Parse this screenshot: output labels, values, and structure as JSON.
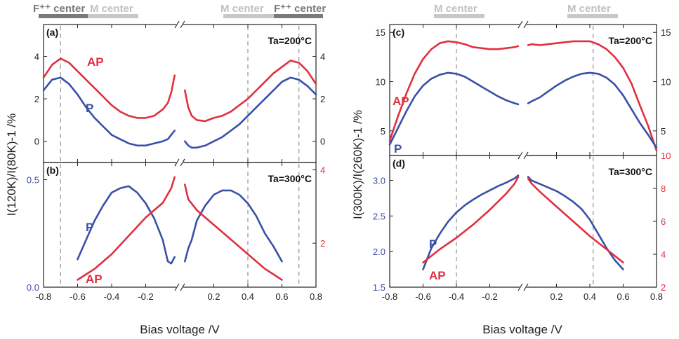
{
  "colors": {
    "p": "#3a4fa8",
    "ap": "#e03040",
    "dark_bar": "#7a7a7a",
    "light_bar": "#c8c8c8",
    "dashed": "#888888"
  },
  "top_labels": {
    "left_f": "F⁺⁺ center",
    "left_m": "M center",
    "right_m": "M center",
    "right_f": "F⁺⁺ center",
    "c_left_m": "M center",
    "c_right_m": "M center"
  },
  "xlabel": "Bias voltage /V",
  "ylabel_left": "I(120K)/I(80K)-1 /%",
  "ylabel_right": "I(300K)/I(260K)-1 /%",
  "x_ticks": [
    "-0.8",
    "-0.6",
    "-0.4",
    "-0.2",
    "0.2",
    "0.4",
    "0.6",
    "0.8"
  ],
  "chart_data": [
    {
      "panel": "(a)",
      "type": "line",
      "annotation": "Ta=200°C",
      "xlim": [
        -0.8,
        0.8
      ],
      "ylim": [
        -1,
        5.5
      ],
      "yticks_left": [
        "0",
        "2",
        "4"
      ],
      "yticks_right": [
        "0",
        "2",
        "4"
      ],
      "dashed_x": [
        -0.7,
        0.4,
        0.7
      ],
      "series": [
        {
          "name": "AP",
          "x": [
            -0.8,
            -0.75,
            -0.7,
            -0.65,
            -0.6,
            -0.55,
            -0.5,
            -0.45,
            -0.4,
            -0.35,
            -0.3,
            -0.25,
            -0.2,
            -0.15,
            -0.1,
            -0.07,
            -0.05,
            -0.03,
            0.03,
            0.05,
            0.07,
            0.1,
            0.15,
            0.2,
            0.25,
            0.3,
            0.35,
            0.4,
            0.45,
            0.5,
            0.55,
            0.6,
            0.65,
            0.7,
            0.75,
            0.8
          ],
          "y": [
            3.0,
            3.6,
            3.9,
            3.7,
            3.3,
            2.9,
            2.5,
            2.1,
            1.7,
            1.4,
            1.2,
            1.1,
            1.1,
            1.2,
            1.5,
            1.8,
            2.3,
            3.1,
            2.4,
            1.6,
            1.2,
            1.0,
            0.95,
            1.1,
            1.2,
            1.4,
            1.7,
            2.0,
            2.4,
            2.8,
            3.2,
            3.5,
            3.8,
            3.7,
            3.3,
            2.7
          ]
        },
        {
          "name": "P",
          "x": [
            -0.8,
            -0.75,
            -0.7,
            -0.65,
            -0.6,
            -0.55,
            -0.5,
            -0.45,
            -0.4,
            -0.35,
            -0.3,
            -0.25,
            -0.2,
            -0.15,
            -0.1,
            -0.07,
            -0.05,
            -0.03,
            0.03,
            0.05,
            0.07,
            0.1,
            0.15,
            0.2,
            0.25,
            0.3,
            0.35,
            0.4,
            0.45,
            0.5,
            0.55,
            0.6,
            0.65,
            0.7,
            0.75,
            0.8
          ],
          "y": [
            2.4,
            2.9,
            3.0,
            2.7,
            2.2,
            1.6,
            1.1,
            0.7,
            0.3,
            0.1,
            -0.1,
            -0.2,
            -0.2,
            -0.1,
            0.0,
            0.1,
            0.3,
            0.5,
            0.0,
            -0.2,
            -0.3,
            -0.3,
            -0.2,
            0.0,
            0.2,
            0.5,
            0.8,
            1.2,
            1.6,
            2.0,
            2.4,
            2.8,
            3.0,
            2.9,
            2.6,
            2.2
          ]
        }
      ]
    },
    {
      "panel": "(b)",
      "type": "line",
      "annotation": "Ta=300°C",
      "xlim": [
        -0.8,
        0.8
      ],
      "ylim_left": [
        0,
        0.58
      ],
      "ylim_right": [
        0.8,
        4.2
      ],
      "yticks_left": [
        "0.0",
        "0.5"
      ],
      "yticks_right": [
        "2",
        "4"
      ],
      "dashed_x": [
        -0.7,
        0.4,
        0.7
      ],
      "series": [
        {
          "name": "P",
          "axis": "left",
          "x": [
            -0.6,
            -0.55,
            -0.5,
            -0.45,
            -0.4,
            -0.35,
            -0.3,
            -0.25,
            -0.2,
            -0.15,
            -0.1,
            -0.07,
            -0.05,
            -0.03,
            0.03,
            0.05,
            0.07,
            0.1,
            0.15,
            0.2,
            0.25,
            0.3,
            0.35,
            0.4,
            0.45,
            0.5,
            0.55,
            0.6
          ],
          "y": [
            0.13,
            0.22,
            0.31,
            0.38,
            0.44,
            0.46,
            0.47,
            0.44,
            0.39,
            0.32,
            0.22,
            0.12,
            0.11,
            0.14,
            0.12,
            0.18,
            0.22,
            0.31,
            0.38,
            0.43,
            0.45,
            0.45,
            0.43,
            0.39,
            0.33,
            0.25,
            0.19,
            0.12
          ]
        },
        {
          "name": "AP",
          "axis": "right",
          "x": [
            -0.6,
            -0.5,
            -0.4,
            -0.3,
            -0.2,
            -0.1,
            -0.05,
            -0.03,
            0.03,
            0.05,
            0.1,
            0.2,
            0.3,
            0.4,
            0.5,
            0.6
          ],
          "y": [
            1.0,
            1.3,
            1.7,
            2.2,
            2.7,
            3.1,
            3.5,
            3.8,
            3.6,
            3.2,
            2.9,
            2.5,
            2.1,
            1.7,
            1.3,
            1.0
          ]
        }
      ]
    },
    {
      "panel": "(c)",
      "type": "line",
      "annotation": "Ta=200°C",
      "xlim": [
        -0.8,
        0.8
      ],
      "ylim": [
        2.5,
        15.8
      ],
      "yticks_left": [
        "5",
        "10",
        "15"
      ],
      "yticks_right": [
        "5",
        "10",
        "15"
      ],
      "dashed_x": [
        -0.4,
        0.42
      ],
      "series": [
        {
          "name": "AP",
          "x": [
            -0.8,
            -0.75,
            -0.7,
            -0.65,
            -0.6,
            -0.55,
            -0.5,
            -0.45,
            -0.4,
            -0.35,
            -0.3,
            -0.25,
            -0.2,
            -0.15,
            -0.1,
            -0.05,
            -0.03,
            0.03,
            0.05,
            0.1,
            0.15,
            0.2,
            0.25,
            0.3,
            0.35,
            0.4,
            0.45,
            0.5,
            0.55,
            0.6,
            0.65,
            0.7,
            0.75,
            0.8
          ],
          "y": [
            4.0,
            6.5,
            8.8,
            10.8,
            12.3,
            13.3,
            13.9,
            14.1,
            14.0,
            13.8,
            13.5,
            13.4,
            13.3,
            13.3,
            13.4,
            13.5,
            13.6,
            13.7,
            13.8,
            13.7,
            13.8,
            13.9,
            14.0,
            14.1,
            14.1,
            14.1,
            13.8,
            13.3,
            12.5,
            11.4,
            9.8,
            7.6,
            5.5,
            3.0
          ]
        },
        {
          "name": "P",
          "x": [
            -0.8,
            -0.75,
            -0.7,
            -0.65,
            -0.6,
            -0.55,
            -0.5,
            -0.45,
            -0.4,
            -0.35,
            -0.3,
            -0.25,
            -0.2,
            -0.15,
            -0.1,
            -0.05,
            -0.03,
            0.03,
            0.05,
            0.1,
            0.15,
            0.2,
            0.25,
            0.3,
            0.35,
            0.4,
            0.45,
            0.5,
            0.55,
            0.6,
            0.65,
            0.7,
            0.75,
            0.8
          ],
          "y": [
            3.6,
            5.3,
            7.0,
            8.5,
            9.6,
            10.3,
            10.7,
            10.9,
            10.8,
            10.5,
            10.0,
            9.5,
            9.0,
            8.5,
            8.1,
            7.8,
            7.7,
            7.8,
            8.0,
            8.4,
            9.0,
            9.6,
            10.1,
            10.5,
            10.8,
            10.9,
            10.8,
            10.4,
            9.7,
            8.6,
            7.2,
            5.8,
            4.6,
            3.3
          ]
        }
      ]
    },
    {
      "panel": "(d)",
      "type": "line",
      "annotation": "Ta=300°C",
      "xlim": [
        -0.8,
        0.8
      ],
      "ylim_left": [
        1.5,
        3.35
      ],
      "ylim_right": [
        2,
        10
      ],
      "yticks_left": [
        "1.5",
        "2.0",
        "2.5",
        "3.0"
      ],
      "yticks_right": [
        "2",
        "4",
        "6",
        "8",
        "10"
      ],
      "dashed_x": [
        -0.4,
        0.42
      ],
      "series": [
        {
          "name": "P",
          "axis": "left",
          "x": [
            -0.6,
            -0.55,
            -0.5,
            -0.45,
            -0.4,
            -0.35,
            -0.3,
            -0.25,
            -0.2,
            -0.15,
            -0.1,
            -0.05,
            -0.03,
            0.03,
            0.05,
            0.1,
            0.15,
            0.2,
            0.25,
            0.3,
            0.35,
            0.4,
            0.45,
            0.5,
            0.55,
            0.6
          ],
          "y": [
            1.75,
            2.05,
            2.25,
            2.42,
            2.55,
            2.65,
            2.73,
            2.8,
            2.86,
            2.92,
            2.97,
            3.03,
            3.07,
            3.05,
            3.0,
            2.95,
            2.9,
            2.85,
            2.78,
            2.7,
            2.6,
            2.45,
            2.25,
            2.05,
            1.88,
            1.75
          ]
        },
        {
          "name": "AP",
          "axis": "right",
          "x": [
            -0.6,
            -0.5,
            -0.4,
            -0.3,
            -0.2,
            -0.1,
            -0.05,
            -0.03,
            0.03,
            0.05,
            0.1,
            0.2,
            0.3,
            0.4,
            0.5,
            0.6
          ],
          "y": [
            3.5,
            4.3,
            5.0,
            5.8,
            6.7,
            7.7,
            8.3,
            8.7,
            8.6,
            8.3,
            7.8,
            6.9,
            6.0,
            5.1,
            4.3,
            3.5
          ]
        }
      ]
    }
  ]
}
